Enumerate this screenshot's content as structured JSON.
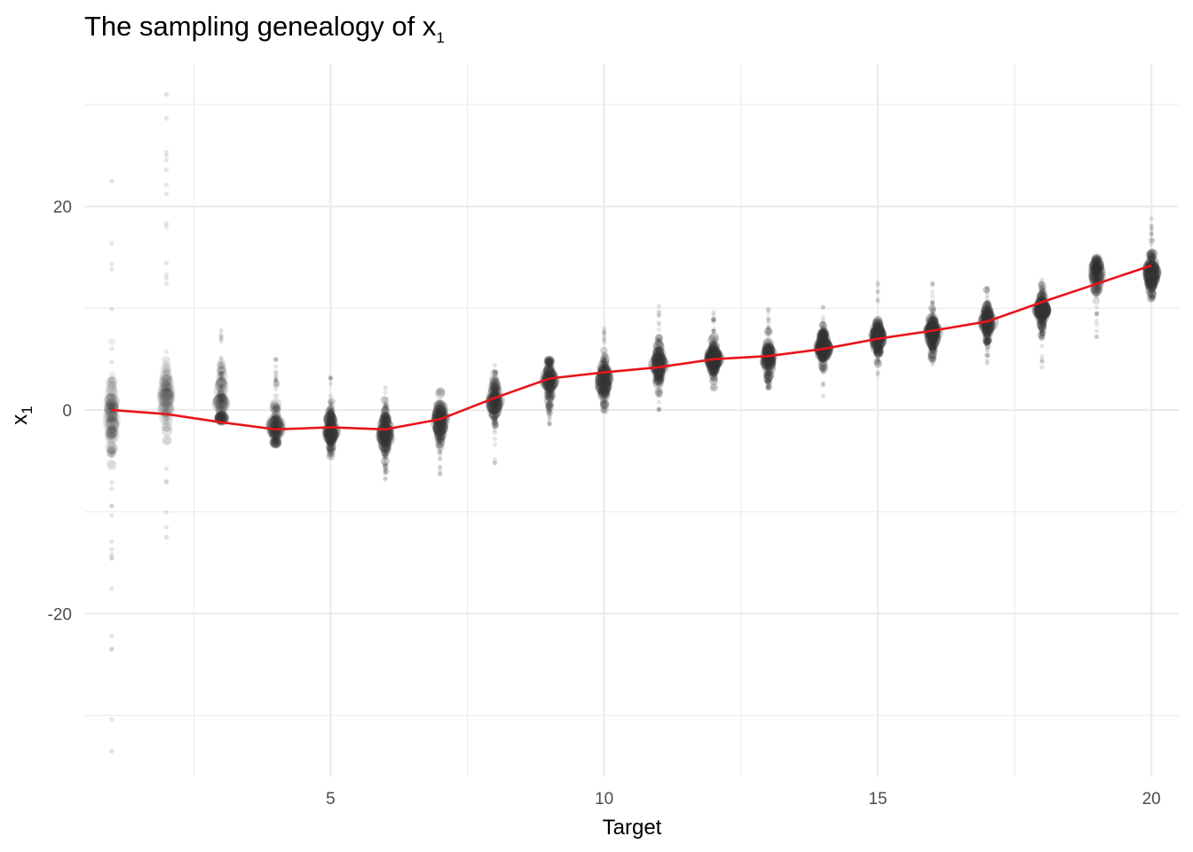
{
  "chart_data": {
    "type": "scatter",
    "title": "The sampling genealogy of x",
    "title_subscript": "1",
    "xlabel": "Target",
    "ylabel": "x",
    "ylabel_subscript": "1",
    "xlim": [
      0.5,
      20.5
    ],
    "ylim": [
      -36,
      34
    ],
    "x_ticks": [
      5,
      10,
      15,
      20
    ],
    "y_ticks": [
      -20,
      0,
      20
    ],
    "grid": true,
    "legend": "none",
    "colors": {
      "line": "#e8141b",
      "points": "#333333",
      "grid": "#ebebeb"
    },
    "series": [
      {
        "type": "line",
        "x": [
          1,
          2,
          3,
          4,
          5,
          6,
          7,
          8,
          9,
          10,
          11,
          12,
          13,
          14,
          15,
          16,
          17,
          18,
          19,
          20
        ],
        "y": [
          0.0,
          -0.4,
          -1.2,
          -1.9,
          -1.7,
          -1.9,
          -0.9,
          1.2,
          3.1,
          3.7,
          4.2,
          5.0,
          5.3,
          6.0,
          7.0,
          7.8,
          8.7,
          10.6,
          12.4,
          14.2
        ]
      },
      {
        "type": "scatter",
        "points": [
          {
            "x": 1,
            "center": -0.5,
            "spread": 2.6,
            "min": -33.5,
            "max": 22.5,
            "alpha": 0.18
          },
          {
            "x": 2,
            "center": 1.2,
            "spread": 2.4,
            "min": -12.5,
            "max": 31.0,
            "alpha": 0.12
          },
          {
            "x": 3,
            "center": 0.8,
            "spread": 2.2,
            "min": -0.8,
            "max": 7.8,
            "alpha": 0.22
          },
          {
            "x": 4,
            "center": -1.6,
            "spread": 1.8,
            "min": -3.2,
            "max": 5.0,
            "alpha": 0.28
          },
          {
            "x": 5,
            "center": -2.0,
            "spread": 1.2,
            "min": -4.5,
            "max": 3.2,
            "alpha": 0.45
          },
          {
            "x": 6,
            "center": -2.3,
            "spread": 1.3,
            "min": -6.8,
            "max": 2.2,
            "alpha": 0.45
          },
          {
            "x": 7,
            "center": -1.0,
            "spread": 1.5,
            "min": -6.3,
            "max": 1.8,
            "alpha": 0.38
          },
          {
            "x": 8,
            "center": 1.0,
            "spread": 1.3,
            "min": -5.2,
            "max": 4.4,
            "alpha": 0.35
          },
          {
            "x": 9,
            "center": 3.0,
            "spread": 1.3,
            "min": -1.4,
            "max": 4.8,
            "alpha": 0.4
          },
          {
            "x": 10,
            "center": 2.8,
            "spread": 1.4,
            "min": 0.0,
            "max": 8.0,
            "alpha": 0.38
          },
          {
            "x": 11,
            "center": 4.4,
            "spread": 1.2,
            "min": 0.0,
            "max": 10.2,
            "alpha": 0.42
          },
          {
            "x": 12,
            "center": 5.1,
            "spread": 1.1,
            "min": 2.2,
            "max": 9.6,
            "alpha": 0.48
          },
          {
            "x": 13,
            "center": 5.0,
            "spread": 1.2,
            "min": 2.2,
            "max": 9.9,
            "alpha": 0.42
          },
          {
            "x": 14,
            "center": 6.1,
            "spread": 1.1,
            "min": 1.4,
            "max": 10.1,
            "alpha": 0.48
          },
          {
            "x": 15,
            "center": 7.2,
            "spread": 1.0,
            "min": 3.5,
            "max": 12.5,
            "alpha": 0.5
          },
          {
            "x": 16,
            "center": 7.6,
            "spread": 1.1,
            "min": 4.5,
            "max": 12.5,
            "alpha": 0.48
          },
          {
            "x": 17,
            "center": 8.6,
            "spread": 1.0,
            "min": 4.6,
            "max": 12.0,
            "alpha": 0.5
          },
          {
            "x": 18,
            "center": 9.8,
            "spread": 1.0,
            "min": 4.2,
            "max": 12.8,
            "alpha": 0.5
          },
          {
            "x": 19,
            "center": 13.4,
            "spread": 1.2,
            "min": 7.2,
            "max": 14.8,
            "alpha": 0.3
          },
          {
            "x": 20,
            "center": 13.5,
            "spread": 1.2,
            "min": 11.0,
            "max": 18.8,
            "alpha": 0.5
          }
        ]
      }
    ]
  }
}
